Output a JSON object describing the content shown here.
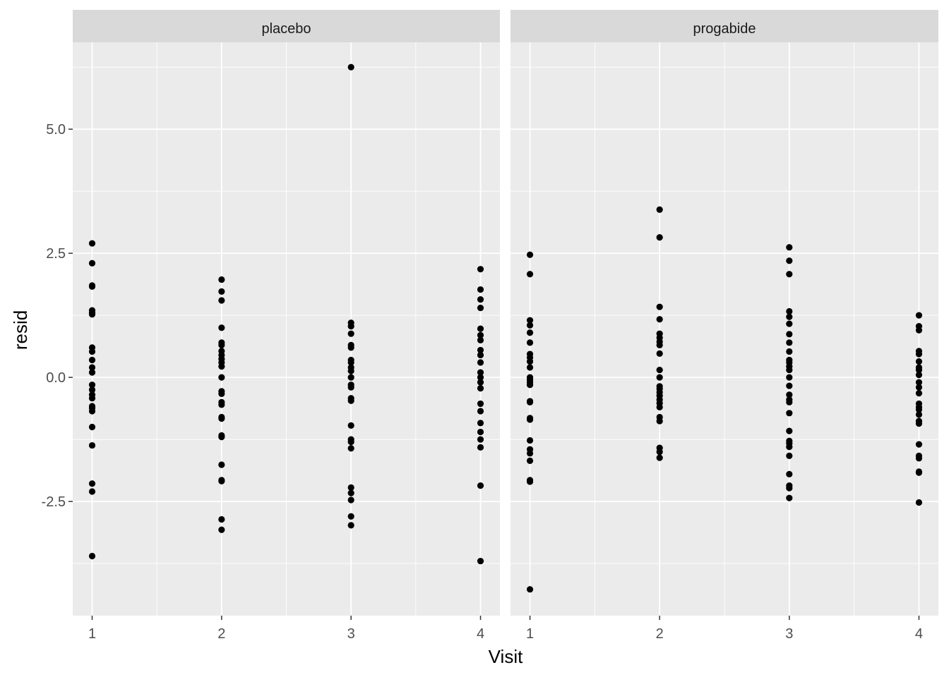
{
  "chart_data": {
    "type": "scatter",
    "title": "",
    "xlabel": "Visit",
    "ylabel": "resid",
    "x_ticks": [
      "1",
      "2",
      "3",
      "4"
    ],
    "y_ticks": [
      {
        "value": 5.0,
        "label": "5.0"
      },
      {
        "value": 2.5,
        "label": "2.5"
      },
      {
        "value": 0.0,
        "label": "0.0"
      },
      {
        "value": -2.5,
        "label": "-2.5"
      }
    ],
    "xlim": [
      0.85,
      4.15
    ],
    "ylim": [
      -4.8,
      6.75
    ],
    "grid": true,
    "colors": {
      "panel_background": "#ebebeb",
      "strip_background": "#d9d9d9",
      "grid_major": "#ffffff",
      "point": "#000000",
      "tick_text": "#4d4d4d",
      "axis_title": "#000000"
    },
    "panels": [
      {
        "strip_label": "placebo",
        "points": [
          {
            "x": 1,
            "y": [
              2.7,
              2.3,
              1.85,
              1.83,
              1.35,
              1.3,
              1.27,
              0.6,
              0.52,
              0.35,
              0.2,
              0.1,
              -0.15,
              -0.25,
              -0.35,
              -0.42,
              -0.58,
              -0.62,
              -0.68,
              -1.0,
              -1.37,
              -2.14,
              -2.3,
              -3.6
            ]
          },
          {
            "x": 2,
            "y": [
              1.97,
              1.73,
              1.55,
              1.0,
              0.7,
              0.65,
              0.53,
              0.45,
              0.37,
              0.3,
              0.22,
              0.0,
              -0.28,
              -0.33,
              -0.5,
              -0.55,
              -0.8,
              -0.83,
              -1.17,
              -1.2,
              -1.76,
              -2.07,
              -2.09,
              -2.86,
              -3.07
            ]
          },
          {
            "x": 3,
            "y": [
              6.25,
              1.1,
              1.03,
              0.88,
              0.65,
              0.6,
              0.35,
              0.3,
              0.2,
              0.13,
              0.0,
              -0.15,
              -0.2,
              -0.42,
              -0.47,
              -0.97,
              -1.25,
              -1.3,
              -1.43,
              -2.22,
              -2.33,
              -2.47,
              -2.8,
              -2.98
            ]
          },
          {
            "x": 4,
            "y": [
              2.18,
              1.77,
              1.57,
              1.4,
              0.98,
              0.85,
              0.75,
              0.55,
              0.45,
              0.3,
              0.1,
              0.0,
              -0.1,
              -0.22,
              -0.53,
              -0.68,
              -0.92,
              -1.1,
              -1.25,
              -1.41,
              -2.18,
              -3.7
            ]
          }
        ]
      },
      {
        "strip_label": "progabide",
        "points": [
          {
            "x": 1,
            "y": [
              2.47,
              2.08,
              1.15,
              1.05,
              0.9,
              0.7,
              0.47,
              0.4,
              0.32,
              0.2,
              0.0,
              -0.05,
              -0.1,
              -0.15,
              -0.48,
              -0.5,
              -0.82,
              -0.85,
              -1.27,
              -1.45,
              -1.53,
              -1.68,
              -2.07,
              -2.1,
              -4.27
            ]
          },
          {
            "x": 2,
            "y": [
              3.38,
              2.82,
              1.42,
              1.17,
              0.88,
              0.8,
              0.72,
              0.65,
              0.48,
              0.15,
              0.0,
              -0.18,
              -0.23,
              -0.3,
              -0.37,
              -0.45,
              -0.52,
              -0.6,
              -0.8,
              -0.88,
              -1.42,
              -1.5,
              -1.62
            ]
          },
          {
            "x": 3,
            "y": [
              2.62,
              2.35,
              2.08,
              1.33,
              1.22,
              1.08,
              0.87,
              0.7,
              0.52,
              0.35,
              0.3,
              0.22,
              0.15,
              0.0,
              -0.17,
              -0.35,
              -0.45,
              -0.5,
              -0.72,
              -1.08,
              -1.28,
              -1.33,
              -1.4,
              -1.58,
              -1.95,
              -2.18,
              -2.23,
              -2.43
            ]
          },
          {
            "x": 4,
            "y": [
              1.25,
              1.03,
              0.95,
              0.53,
              0.47,
              0.32,
              0.2,
              0.15,
              0.05,
              -0.1,
              -0.2,
              -0.32,
              -0.53,
              -0.6,
              -0.65,
              -0.75,
              -0.88,
              -0.93,
              -1.35,
              -1.58,
              -1.63,
              -1.9,
              -1.92,
              -2.52
            ]
          }
        ]
      }
    ]
  }
}
